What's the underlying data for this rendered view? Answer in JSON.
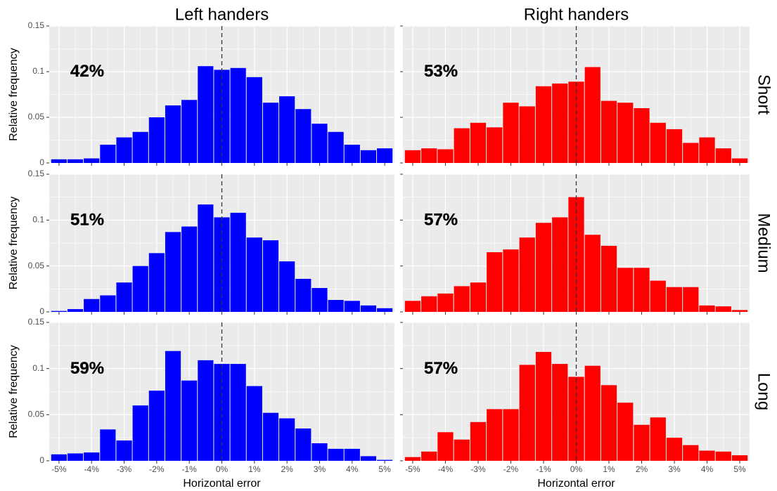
{
  "chart_data": [
    {
      "type": "histogram",
      "title": "Left handers",
      "ylabel": "Relative frequency",
      "annotation": "42%",
      "color": "#0000ff",
      "vline": 0,
      "bins": [
        -5.25,
        -4.75,
        -4.25,
        -3.75,
        -3.25,
        -2.75,
        -2.25,
        -1.75,
        -1.25,
        -0.75,
        -0.25,
        0.25,
        0.75,
        1.25,
        1.75,
        2.25,
        2.75,
        3.25,
        3.75,
        4.25,
        4.75,
        5.25
      ],
      "values": [
        0.004,
        0.004,
        0.005,
        0.02,
        0.028,
        0.034,
        0.05,
        0.063,
        0.069,
        0.106,
        0.102,
        0.104,
        0.094,
        0.066,
        0.073,
        0.059,
        0.043,
        0.034,
        0.02,
        0.014,
        0.016
      ],
      "xlim": [
        -5.3,
        5.3
      ],
      "ylim": [
        0,
        0.15
      ],
      "yticks": [
        0,
        0.05,
        0.1,
        0.15
      ]
    },
    {
      "type": "histogram",
      "title": "Right handers",
      "row_label": "Short",
      "annotation": "53%",
      "color": "#ff0000",
      "vline": 0,
      "bins": [
        -5.25,
        -4.75,
        -4.25,
        -3.75,
        -3.25,
        -2.75,
        -2.25,
        -1.75,
        -1.25,
        -0.75,
        -0.25,
        0.25,
        0.75,
        1.25,
        1.75,
        2.25,
        2.75,
        3.25,
        3.75,
        4.25,
        4.75,
        5.25
      ],
      "values": [
        0.014,
        0.016,
        0.015,
        0.038,
        0.044,
        0.039,
        0.066,
        0.062,
        0.084,
        0.087,
        0.089,
        0.105,
        0.068,
        0.066,
        0.06,
        0.044,
        0.037,
        0.022,
        0.028,
        0.016,
        0.005
      ],
      "xlim": [
        -5.3,
        5.3
      ],
      "ylim": [
        0,
        0.15
      ]
    },
    {
      "type": "histogram",
      "ylabel": "Relative frequency",
      "annotation": "51%",
      "color": "#0000ff",
      "vline": 0,
      "bins": [
        -5.25,
        -4.75,
        -4.25,
        -3.75,
        -3.25,
        -2.75,
        -2.25,
        -1.75,
        -1.25,
        -0.75,
        -0.25,
        0.25,
        0.75,
        1.25,
        1.75,
        2.25,
        2.75,
        3.25,
        3.75,
        4.25,
        4.75,
        5.25
      ],
      "values": [
        0.001,
        0.003,
        0.014,
        0.018,
        0.032,
        0.05,
        0.064,
        0.087,
        0.093,
        0.117,
        0.103,
        0.108,
        0.081,
        0.078,
        0.055,
        0.036,
        0.026,
        0.013,
        0.012,
        0.007,
        0.004
      ],
      "xlim": [
        -5.3,
        5.3
      ],
      "ylim": [
        0,
        0.15
      ],
      "yticks": [
        0,
        0.05,
        0.1,
        0.15
      ]
    },
    {
      "type": "histogram",
      "row_label": "Medium",
      "annotation": "57%",
      "color": "#ff0000",
      "vline": 0,
      "bins": [
        -5.25,
        -4.75,
        -4.25,
        -3.75,
        -3.25,
        -2.75,
        -2.25,
        -1.75,
        -1.25,
        -0.75,
        -0.25,
        0.25,
        0.75,
        1.25,
        1.75,
        2.25,
        2.75,
        3.25,
        3.75,
        4.25,
        4.75,
        5.25
      ],
      "values": [
        0.012,
        0.017,
        0.02,
        0.028,
        0.032,
        0.065,
        0.068,
        0.081,
        0.097,
        0.103,
        0.125,
        0.084,
        0.072,
        0.048,
        0.048,
        0.034,
        0.027,
        0.027,
        0.007,
        0.006,
        0.002
      ],
      "xlim": [
        -5.3,
        5.3
      ],
      "ylim": [
        0,
        0.15
      ]
    },
    {
      "type": "histogram",
      "ylabel": "Relative frequency",
      "xlabel": "Horizontal error",
      "annotation": "59%",
      "color": "#0000ff",
      "vline": 0,
      "bins": [
        -5.25,
        -4.75,
        -4.25,
        -3.75,
        -3.25,
        -2.75,
        -2.25,
        -1.75,
        -1.25,
        -0.75,
        -0.25,
        0.25,
        0.75,
        1.25,
        1.75,
        2.25,
        2.75,
        3.25,
        3.75,
        4.25,
        4.75,
        5.25
      ],
      "values": [
        0.007,
        0.008,
        0.009,
        0.034,
        0.022,
        0.06,
        0.076,
        0.119,
        0.087,
        0.109,
        0.105,
        0.105,
        0.081,
        0.052,
        0.046,
        0.035,
        0.019,
        0.013,
        0.013,
        0.005,
        0.001
      ],
      "xlim": [
        -5.3,
        5.3
      ],
      "ylim": [
        0,
        0.15
      ],
      "yticks": [
        0,
        0.05,
        0.1,
        0.15
      ],
      "xticks": [
        {
          "value": -5,
          "label": "-5%"
        },
        {
          "value": -4,
          "label": "-4%"
        },
        {
          "value": -3,
          "label": "-3%"
        },
        {
          "value": -2,
          "label": "-2%"
        },
        {
          "value": -1,
          "label": "-1%"
        },
        {
          "value": 0,
          "label": "0%"
        },
        {
          "value": 1,
          "label": "1%"
        },
        {
          "value": 2,
          "label": "2%"
        },
        {
          "value": 3,
          "label": "3%"
        },
        {
          "value": 4,
          "label": "4%"
        },
        {
          "value": 5,
          "label": "5%"
        }
      ]
    },
    {
      "type": "histogram",
      "row_label": "Long",
      "xlabel": "Horizontal error",
      "annotation": "57%",
      "color": "#ff0000",
      "vline": 0,
      "bins": [
        -5.25,
        -4.75,
        -4.25,
        -3.75,
        -3.25,
        -2.75,
        -2.25,
        -1.75,
        -1.25,
        -0.75,
        -0.25,
        0.25,
        0.75,
        1.25,
        1.75,
        2.25,
        2.75,
        3.25,
        3.75,
        4.25,
        4.75,
        5.25
      ],
      "values": [
        0.004,
        0.01,
        0.031,
        0.023,
        0.042,
        0.056,
        0.056,
        0.104,
        0.118,
        0.105,
        0.091,
        0.103,
        0.082,
        0.063,
        0.039,
        0.047,
        0.025,
        0.017,
        0.011,
        0.01,
        0.006
      ],
      "xlim": [
        -5.3,
        5.3
      ],
      "ylim": [
        0,
        0.15
      ],
      "xticks": [
        {
          "value": -5,
          "label": "-5%"
        },
        {
          "value": -4,
          "label": "-4%"
        },
        {
          "value": -3,
          "label": "-3%"
        },
        {
          "value": -2,
          "label": "-2%"
        },
        {
          "value": -1,
          "label": "-1%"
        },
        {
          "value": 0,
          "label": "0%"
        },
        {
          "value": 1,
          "label": "1%"
        },
        {
          "value": 2,
          "label": "2%"
        },
        {
          "value": 3,
          "label": "3%"
        },
        {
          "value": 4,
          "label": "4%"
        },
        {
          "value": 5,
          "label": "5%"
        }
      ]
    }
  ]
}
